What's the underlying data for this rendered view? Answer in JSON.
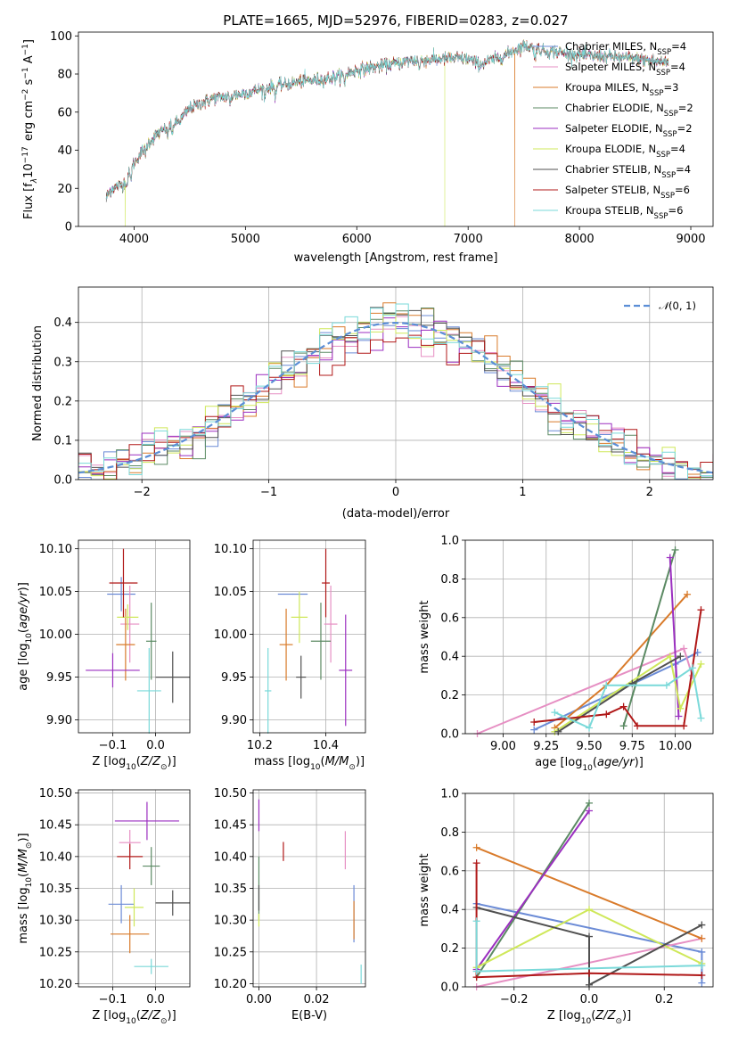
{
  "figure_title": "PLATE=1665, MJD=52976, FIBERID=0283, z=0.027",
  "models": [
    {
      "name": "Chabrier MILES",
      "nssp": "4",
      "color": "#6b8bd6"
    },
    {
      "name": "Salpeter MILES",
      "nssp": "4",
      "color": "#e68fc3"
    },
    {
      "name": "Kroupa MILES",
      "nssp": "3",
      "color": "#d97b2b"
    },
    {
      "name": "Chabrier ELODIE",
      "nssp": "2",
      "color": "#5b8a63"
    },
    {
      "name": "Salpeter ELODIE",
      "nssp": "2",
      "color": "#9b2fc0"
    },
    {
      "name": "Kroupa ELODIE",
      "nssp": "4",
      "color": "#cfe85a"
    },
    {
      "name": "Chabrier STELIB",
      "nssp": "4",
      "color": "#505050"
    },
    {
      "name": "Salpeter STELIB",
      "nssp": "6",
      "color": "#b01818"
    },
    {
      "name": "Kroupa STELIB",
      "nssp": "6",
      "color": "#7ad9d9"
    }
  ],
  "chart_data": [
    {
      "type": "line",
      "id": "spectrum",
      "title": "PLATE=1665, MJD=52976, FIBERID=0283, z=0.027",
      "xlabel": "wavelength [Angstrom, rest frame]",
      "ylabel": "Flux [f_λ 10^-17 erg cm^-2 s^-1 A^-1]",
      "xlim": [
        3500,
        9200
      ],
      "ylim": [
        0,
        102
      ],
      "xticks": [
        4000,
        5000,
        6000,
        7000,
        8000,
        9000
      ],
      "yticks": [
        0,
        20,
        40,
        60,
        80,
        100
      ],
      "grid": false,
      "legend": "right",
      "x_range": [
        3750,
        8800
      ],
      "continuum": [
        [
          3750,
          15
        ],
        [
          3800,
          20
        ],
        [
          3900,
          22
        ],
        [
          4000,
          33
        ],
        [
          4100,
          42
        ],
        [
          4200,
          48
        ],
        [
          4300,
          52
        ],
        [
          4400,
          55
        ],
        [
          4500,
          62
        ],
        [
          4700,
          67
        ],
        [
          5000,
          70
        ],
        [
          5200,
          73
        ],
        [
          5500,
          76
        ],
        [
          5800,
          78
        ],
        [
          6000,
          82
        ],
        [
          6200,
          84
        ],
        [
          6500,
          87
        ],
        [
          6800,
          88
        ],
        [
          7000,
          88
        ],
        [
          7100,
          85
        ],
        [
          7300,
          89
        ],
        [
          7500,
          95
        ],
        [
          7700,
          92
        ],
        [
          8000,
          90
        ],
        [
          8300,
          89
        ],
        [
          8500,
          88
        ],
        [
          8800,
          86
        ]
      ],
      "dropouts": [
        {
          "x": 6790,
          "series": "Kroupa ELODIE"
        },
        {
          "x": 7420,
          "series": "Kroupa MILES"
        },
        {
          "x": 3920,
          "series": "Kroupa ELODIE"
        }
      ]
    },
    {
      "type": "histogram",
      "id": "residuals",
      "xlabel": "(data-model)/error",
      "ylabel": "Normed distribution",
      "xlim": [
        -2.5,
        2.5
      ],
      "ylim": [
        0,
        0.49
      ],
      "xticks": [
        -2,
        -1,
        0,
        1,
        2
      ],
      "yticks": [
        0.0,
        0.1,
        0.2,
        0.3,
        0.4
      ],
      "grid": true,
      "legend": "top-right",
      "reference_curve": {
        "name": "N(0,1)",
        "color": "#5b8ed6",
        "style": "dashed"
      },
      "bin_width": 0.1
    },
    {
      "type": "scatter",
      "id": "age_vs_Z",
      "xlabel": "Z [log10(Z/Z☉)]",
      "ylabel": "age [log10(age/yr)]",
      "xlim": [
        -0.18,
        0.08
      ],
      "ylim": [
        9.885,
        10.11
      ],
      "xticks": [
        -0.1,
        0.0
      ],
      "yticks": [
        9.9,
        9.95,
        10.0,
        10.05,
        10.1
      ],
      "grid": true,
      "points": [
        {
          "series": "Chabrier MILES",
          "x": -0.08,
          "y": 10.047,
          "xerr": 0.033,
          "yerr": 0.02
        },
        {
          "series": "Salpeter MILES",
          "x": -0.06,
          "y": 10.012,
          "xerr": 0.022,
          "yerr": 0.045
        },
        {
          "series": "Kroupa MILES",
          "x": -0.07,
          "y": 9.988,
          "xerr": 0.022,
          "yerr": 0.042
        },
        {
          "series": "Chabrier ELODIE",
          "x": -0.01,
          "y": 9.992,
          "xerr": 0.012,
          "yerr": 0.045
        },
        {
          "series": "Salpeter ELODIE",
          "x": -0.1,
          "y": 9.958,
          "xerr": 0.063,
          "yerr": 0.02
        },
        {
          "series": "Kroupa ELODIE",
          "x": -0.065,
          "y": 10.02,
          "xerr": 0.025,
          "yerr": 0.015
        },
        {
          "series": "Chabrier STELIB",
          "x": 0.04,
          "y": 9.95,
          "xerr": 0.04,
          "yerr": 0.03
        },
        {
          "series": "Salpeter STELIB",
          "x": -0.075,
          "y": 10.06,
          "xerr": 0.033,
          "yerr": 0.04
        },
        {
          "series": "Kroupa STELIB",
          "x": -0.015,
          "y": 9.934,
          "xerr": 0.028,
          "yerr": 0.05
        }
      ]
    },
    {
      "type": "scatter",
      "id": "age_vs_mass",
      "xlabel": "mass [log10(M/M☉)]",
      "ylabel": "",
      "xlim": [
        10.18,
        10.52
      ],
      "ylim": [
        9.885,
        10.11
      ],
      "xticks": [
        10.2,
        10.4
      ],
      "yticks": [
        9.9,
        9.95,
        10.0,
        10.05,
        10.1
      ],
      "grid": true,
      "points": [
        {
          "series": "Chabrier MILES",
          "x": 10.3,
          "y": 10.047,
          "xerr": 0.045,
          "yerr": 0.0
        },
        {
          "series": "Salpeter MILES",
          "x": 10.415,
          "y": 10.012,
          "xerr": 0.02,
          "yerr": 0.045
        },
        {
          "series": "Kroupa MILES",
          "x": 10.28,
          "y": 9.988,
          "xerr": 0.02,
          "yerr": 0.042
        },
        {
          "series": "Chabrier ELODIE",
          "x": 10.385,
          "y": 9.992,
          "xerr": 0.03,
          "yerr": 0.045
        },
        {
          "series": "Salpeter ELODIE",
          "x": 10.46,
          "y": 9.958,
          "xerr": 0.02,
          "yerr": 0.065
        },
        {
          "series": "Kroupa ELODIE",
          "x": 10.32,
          "y": 10.02,
          "xerr": 0.025,
          "yerr": 0.03
        },
        {
          "series": "Chabrier STELIB",
          "x": 10.325,
          "y": 9.95,
          "xerr": 0.015,
          "yerr": 0.025
        },
        {
          "series": "Salpeter STELIB",
          "x": 10.4,
          "y": 10.06,
          "xerr": 0.012,
          "yerr": 0.04
        },
        {
          "series": "Kroupa STELIB",
          "x": 10.225,
          "y": 9.934,
          "xerr": 0.01,
          "yerr": 0.05
        }
      ]
    },
    {
      "type": "line",
      "id": "massweight_vs_age",
      "xlabel": "age [log10(age/yr)]",
      "ylabel": "mass weight",
      "xlim": [
        8.78,
        10.22
      ],
      "ylim": [
        0,
        1.0
      ],
      "xticks": [
        9.0,
        9.25,
        9.5,
        9.75,
        10.0
      ],
      "yticks": [
        0.0,
        0.2,
        0.4,
        0.6,
        0.8,
        1.0
      ],
      "grid": true,
      "series": [
        {
          "name": "Chabrier MILES",
          "points": [
            [
              9.18,
              0.02
            ],
            [
              10.0,
              0.36
            ],
            [
              10.13,
              0.42
            ]
          ]
        },
        {
          "name": "Salpeter MILES",
          "points": [
            [
              8.85,
              0.0
            ],
            [
              10.05,
              0.44
            ],
            [
              10.1,
              0.3
            ]
          ]
        },
        {
          "name": "Kroupa MILES",
          "points": [
            [
              9.3,
              0.03
            ],
            [
              9.6,
              0.25
            ],
            [
              10.07,
              0.72
            ]
          ]
        },
        {
          "name": "Chabrier ELODIE",
          "points": [
            [
              9.7,
              0.04
            ],
            [
              10.0,
              0.95
            ]
          ]
        },
        {
          "name": "Salpeter ELODIE",
          "points": [
            [
              9.97,
              0.91
            ],
            [
              10.02,
              0.09
            ]
          ]
        },
        {
          "name": "Kroupa ELODIE",
          "points": [
            [
              9.3,
              0.01
            ],
            [
              9.97,
              0.4
            ],
            [
              10.03,
              0.13
            ],
            [
              10.15,
              0.36
            ]
          ]
        },
        {
          "name": "Chabrier STELIB",
          "points": [
            [
              9.32,
              0.01
            ],
            [
              9.75,
              0.26
            ],
            [
              10.03,
              0.4
            ]
          ]
        },
        {
          "name": "Salpeter STELIB",
          "points": [
            [
              9.18,
              0.06
            ],
            [
              9.6,
              0.1
            ],
            [
              9.7,
              0.14
            ],
            [
              9.78,
              0.04
            ],
            [
              10.05,
              0.04
            ],
            [
              10.15,
              0.64
            ]
          ]
        },
        {
          "name": "Kroupa STELIB",
          "points": [
            [
              9.3,
              0.11
            ],
            [
              9.5,
              0.03
            ],
            [
              9.6,
              0.25
            ],
            [
              9.95,
              0.25
            ],
            [
              10.1,
              0.34
            ],
            [
              10.15,
              0.08
            ]
          ]
        }
      ]
    },
    {
      "type": "scatter",
      "id": "mass_vs_Z",
      "xlabel": "Z [log10(Z/Z☉)]",
      "ylabel": "mass [log10(M/M☉)]",
      "xlim": [
        -0.18,
        0.08
      ],
      "ylim": [
        10.195,
        10.505
      ],
      "xticks": [
        -0.1,
        0.0
      ],
      "yticks": [
        10.2,
        10.25,
        10.3,
        10.35,
        10.4,
        10.45,
        10.5
      ],
      "grid": true,
      "points": [
        {
          "series": "Chabrier MILES",
          "x": -0.08,
          "y": 10.325,
          "xerr": 0.03,
          "yerr": 0.03
        },
        {
          "series": "Salpeter MILES",
          "x": -0.06,
          "y": 10.422,
          "xerr": 0.025,
          "yerr": 0.02
        },
        {
          "series": "Kroupa MILES",
          "x": -0.06,
          "y": 10.278,
          "xerr": 0.045,
          "yerr": 0.03
        },
        {
          "series": "Chabrier ELODIE",
          "x": -0.01,
          "y": 10.385,
          "xerr": 0.02,
          "yerr": 0.03
        },
        {
          "series": "Salpeter ELODIE",
          "x": -0.02,
          "y": 10.456,
          "xerr": 0.075,
          "yerr": 0.03
        },
        {
          "series": "Kroupa ELODIE",
          "x": -0.05,
          "y": 10.32,
          "xerr": 0.022,
          "yerr": 0.03
        },
        {
          "series": "Chabrier STELIB",
          "x": 0.04,
          "y": 10.327,
          "xerr": 0.04,
          "yerr": 0.02
        },
        {
          "series": "Salpeter STELIB",
          "x": -0.06,
          "y": 10.4,
          "xerr": 0.03,
          "yerr": 0.02
        },
        {
          "series": "Kroupa STELIB",
          "x": -0.01,
          "y": 10.227,
          "xerr": 0.04,
          "yerr": 0.012
        }
      ]
    },
    {
      "type": "scatter",
      "id": "mass_vs_EBV",
      "xlabel": "E(B-V)",
      "ylabel": "",
      "xlim": [
        -0.002,
        0.037
      ],
      "ylim": [
        10.195,
        10.505
      ],
      "xticks": [
        0.0,
        0.02
      ],
      "yticks": [
        10.2,
        10.25,
        10.3,
        10.35,
        10.4,
        10.45,
        10.5
      ],
      "grid": true,
      "points": [
        {
          "series": "Chabrier MILES",
          "x": 0.033,
          "y": 10.31,
          "xerr": 0,
          "yerr": 0.045
        },
        {
          "series": "Salpeter MILES",
          "x": 0.03,
          "y": 10.41,
          "xerr": 0,
          "yerr": 0.03
        },
        {
          "series": "Kroupa MILES",
          "x": 0.033,
          "y": 10.3,
          "xerr": 0,
          "yerr": 0.03
        },
        {
          "series": "Chabrier ELODIE",
          "x": 0.0,
          "y": 10.35,
          "xerr": 0,
          "yerr": 0.05
        },
        {
          "series": "Salpeter ELODIE",
          "x": 0.0,
          "y": 10.465,
          "xerr": 0,
          "yerr": 0.025
        },
        {
          "series": "Kroupa ELODIE",
          "x": 0.0,
          "y": 10.3,
          "xerr": 0,
          "yerr": 0.01
        },
        {
          "series": "Chabrier STELIB",
          "x": 0.0,
          "y": 10.335,
          "xerr": 0,
          "yerr": 0.02
        },
        {
          "series": "Salpeter STELIB",
          "x": 0.0085,
          "y": 10.408,
          "xerr": 0,
          "yerr": 0.015
        },
        {
          "series": "Kroupa STELIB",
          "x": 0.0355,
          "y": 10.215,
          "xerr": 0,
          "yerr": 0.015
        }
      ]
    },
    {
      "type": "line",
      "id": "massweight_vs_Z",
      "xlabel": "Z [log10(Z/Z☉)]",
      "ylabel": "mass weight",
      "xlim": [
        -0.33,
        0.33
      ],
      "ylim": [
        0,
        1.0
      ],
      "xticks": [
        -0.2,
        0.0,
        0.2
      ],
      "yticks": [
        0.0,
        0.2,
        0.4,
        0.6,
        0.8,
        1.0
      ],
      "grid": true,
      "series": [
        {
          "name": "Chabrier MILES",
          "points": [
            [
              -0.3,
              0.43
            ],
            [
              0.3,
              0.18
            ],
            [
              0.3,
              0.02
            ]
          ]
        },
        {
          "name": "Salpeter MILES",
          "points": [
            [
              -0.3,
              0.0
            ],
            [
              0.3,
              0.25
            ]
          ]
        },
        {
          "name": "Kroupa MILES",
          "points": [
            [
              -0.3,
              0.72
            ],
            [
              0.3,
              0.25
            ]
          ]
        },
        {
          "name": "Chabrier ELODIE",
          "points": [
            [
              -0.3,
              0.05
            ],
            [
              0.0,
              0.95
            ]
          ]
        },
        {
          "name": "Salpeter ELODIE",
          "points": [
            [
              -0.3,
              0.09
            ],
            [
              0.0,
              0.91
            ]
          ]
        },
        {
          "name": "Kroupa ELODIE",
          "points": [
            [
              -0.3,
              0.1
            ],
            [
              0.0,
              0.4
            ],
            [
              0.3,
              0.12
            ]
          ]
        },
        {
          "name": "Chabrier STELIB",
          "points": [
            [
              -0.3,
              0.41
            ],
            [
              0.0,
              0.26
            ],
            [
              0.0,
              0.01
            ],
            [
              0.3,
              0.32
            ]
          ]
        },
        {
          "name": "Salpeter STELIB",
          "points": [
            [
              -0.3,
              0.64
            ],
            [
              -0.3,
              0.05
            ],
            [
              0.0,
              0.07
            ],
            [
              0.3,
              0.06
            ]
          ]
        },
        {
          "name": "Kroupa STELIB",
          "points": [
            [
              -0.3,
              0.34
            ],
            [
              -0.3,
              0.08
            ],
            [
              0.3,
              0.11
            ]
          ]
        }
      ]
    }
  ]
}
